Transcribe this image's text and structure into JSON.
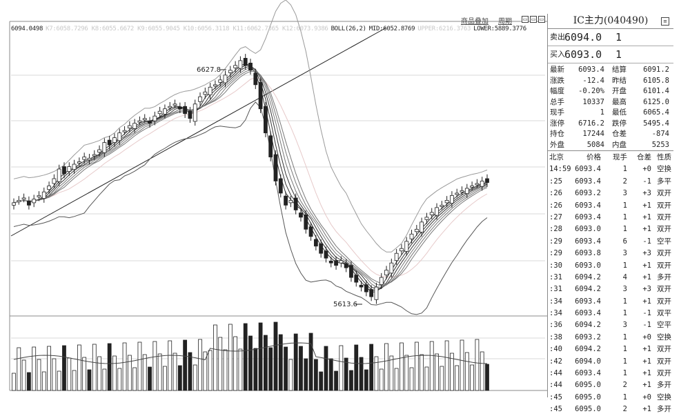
{
  "toolbar": {
    "overlay_link": "商品叠加",
    "period_link": "周期"
  },
  "indicator_line": {
    "cursor_value": "6094.0498",
    "faded_text": "K7:6058.7296 K8:6055.6672 K9:6055.9045 K10:6056.3118 K11:6062.7365 K12:6073.9386",
    "boll_label": "BOLL(26,2)",
    "mid": "MID:6052.8769",
    "upper": "UPPER:6216.3763",
    "lower": "LOWER:5889.3776"
  },
  "chart_annotations": {
    "high_label": "6627.8",
    "low_label": "5613.6"
  },
  "colors": {
    "up_candle": "#ffffff",
    "down_candle": "#222222",
    "grid": "#d8d8d8",
    "band": "#555555"
  },
  "chart_data": {
    "type": "line",
    "ylim": [
      5540,
      6720
    ],
    "high": 6627.8,
    "low": 5613.6,
    "close_series": [
      6010,
      6020,
      6030,
      6000,
      6025,
      6040,
      6055,
      6080,
      6110,
      6150,
      6130,
      6160,
      6170,
      6180,
      6200,
      6195,
      6210,
      6230,
      6260,
      6250,
      6280,
      6300,
      6310,
      6330,
      6340,
      6350,
      6360,
      6340,
      6370,
      6390,
      6400,
      6410,
      6420,
      6400,
      6380,
      6360,
      6420,
      6450,
      6470,
      6490,
      6500,
      6520,
      6540,
      6560,
      6580,
      6600,
      6580,
      6560,
      6500,
      6400,
      6300,
      6200,
      6100,
      6050,
      6000,
      6020,
      5980,
      5950,
      5900,
      5870,
      5830,
      5800,
      5780,
      5760,
      5750,
      5770,
      5740,
      5700,
      5680,
      5660,
      5640,
      5620,
      5660,
      5700,
      5730,
      5760,
      5800,
      5820,
      5850,
      5880,
      5900,
      5930,
      5950,
      5970,
      5990,
      6000,
      6020,
      6040,
      6050,
      6060,
      6070,
      6080,
      6090,
      6100,
      6094
    ]
  },
  "quote": {
    "title": "IC主力(040490)",
    "ask_label": "卖出",
    "ask_price": "6094.0",
    "ask_vol": "1",
    "bid_label": "买入",
    "bid_price": "6093.0",
    "bid_vol": "1",
    "stats": [
      [
        "最新",
        "6093.4",
        "结算",
        "6091.2"
      ],
      [
        "涨跌",
        "-12.4",
        "昨结",
        "6105.8"
      ],
      [
        "幅度",
        "-0.20%",
        "开盘",
        "6101.4"
      ],
      [
        "总手",
        "10337",
        "最高",
        "6125.0"
      ],
      [
        "现手",
        "1",
        "最低",
        "6065.4"
      ],
      [
        "涨停",
        "6716.2",
        "跌停",
        "5495.4"
      ],
      [
        "持仓",
        "17244",
        "仓差",
        "-874"
      ],
      [
        "外盘",
        "5084",
        "内盘",
        "5253"
      ]
    ],
    "trades_header": [
      "北京",
      "价格",
      "现手",
      "仓差",
      "性质"
    ],
    "trades": [
      [
        "14:59",
        "6093.4",
        "1",
        "+0",
        "空换"
      ],
      [
        ":25",
        "6093.4",
        "2",
        "-1",
        "多平"
      ],
      [
        ":26",
        "6093.2",
        "3",
        "+3",
        "双开"
      ],
      [
        ":26",
        "6093.4",
        "1",
        "+1",
        "双开"
      ],
      [
        ":27",
        "6093.4",
        "1",
        "+1",
        "双开"
      ],
      [
        ":28",
        "6093.0",
        "1",
        "+1",
        "双开"
      ],
      [
        ":29",
        "6093.4",
        "6",
        "-1",
        "空平"
      ],
      [
        ":29",
        "6093.8",
        "3",
        "+3",
        "双开"
      ],
      [
        ":30",
        "6093.0",
        "1",
        "+1",
        "双开"
      ],
      [
        ":31",
        "6094.2",
        "4",
        "+1",
        "多开"
      ],
      [
        ":31",
        "6094.2",
        "3",
        "+3",
        "双开"
      ],
      [
        ":34",
        "6093.4",
        "1",
        "+1",
        "双开"
      ],
      [
        ":34",
        "6093.4",
        "1",
        "-1",
        "双平"
      ],
      [
        ":36",
        "6094.2",
        "3",
        "-1",
        "空平"
      ],
      [
        ":38",
        "6093.2",
        "1",
        "+0",
        "空换"
      ],
      [
        ":40",
        "6094.2",
        "1",
        "+1",
        "双开"
      ],
      [
        ":42",
        "6094.0",
        "1",
        "+1",
        "双开"
      ],
      [
        ":44",
        "6093.4",
        "1",
        "+1",
        "双开"
      ],
      [
        ":44",
        "6095.0",
        "2",
        "+1",
        "多开"
      ],
      [
        ":45",
        "6095.0",
        "1",
        "+0",
        "空换"
      ],
      [
        ":45",
        "6095.0",
        "2",
        "+1",
        "多开"
      ]
    ]
  }
}
